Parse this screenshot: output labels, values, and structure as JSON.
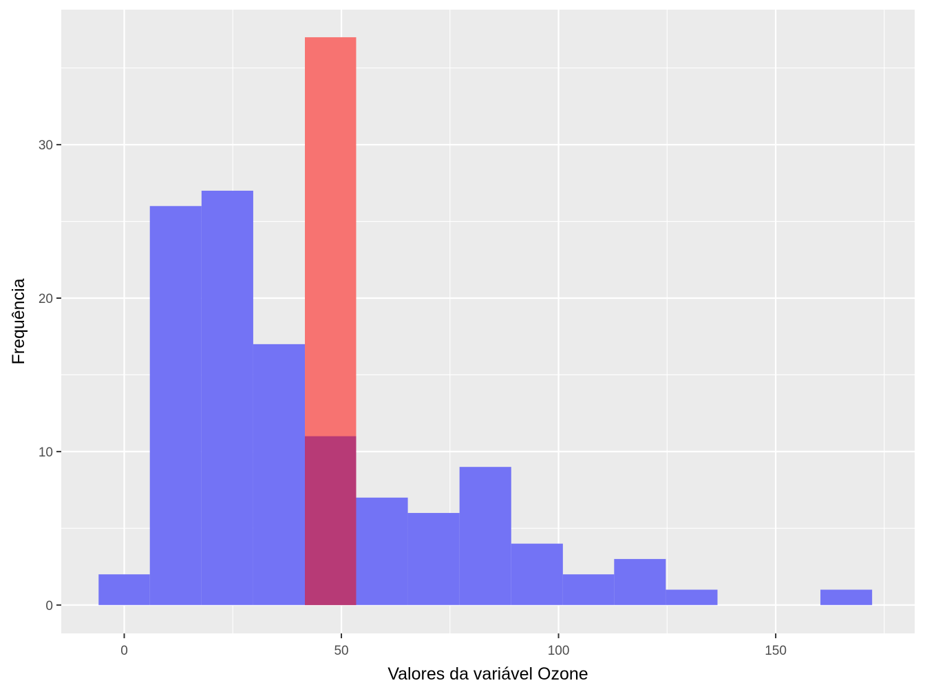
{
  "chart_data": {
    "type": "bar",
    "subtype": "histogram",
    "title": "",
    "xlabel": "Valores da variável Ozone",
    "ylabel": "Frequência",
    "xlim": [
      -14.5,
      182
    ],
    "ylim": [
      -1.85,
      38.8
    ],
    "x_ticks": [
      0,
      50,
      100,
      150
    ],
    "y_ticks": [
      0,
      10,
      20,
      30
    ],
    "grid": true,
    "legend": "none",
    "series": [
      {
        "color": "#7373f5",
        "bins": [
          {
            "x0": -5.9,
            "x1": 5.9,
            "count": 2
          },
          {
            "x0": 5.9,
            "x1": 17.8,
            "count": 26
          },
          {
            "x0": 17.8,
            "x1": 29.7,
            "count": 27
          },
          {
            "x0": 29.7,
            "x1": 41.6,
            "count": 17
          },
          {
            "x0": 41.6,
            "x1": 53.4,
            "count": 11
          },
          {
            "x0": 53.4,
            "x1": 65.3,
            "count": 7
          },
          {
            "x0": 65.3,
            "x1": 77.2,
            "count": 6
          },
          {
            "x0": 77.2,
            "x1": 89.1,
            "count": 9
          },
          {
            "x0": 89.1,
            "x1": 101.0,
            "count": 4
          },
          {
            "x0": 101.0,
            "x1": 112.8,
            "count": 2
          },
          {
            "x0": 112.8,
            "x1": 124.7,
            "count": 3
          },
          {
            "x0": 124.7,
            "x1": 136.6,
            "count": 1
          },
          {
            "x0": 136.6,
            "x1": 148.5,
            "count": 0
          },
          {
            "x0": 148.5,
            "x1": 160.3,
            "count": 0
          },
          {
            "x0": 160.3,
            "x1": 172.2,
            "count": 1
          }
        ]
      },
      {
        "color": "#f77371",
        "bins": [
          {
            "x0": 41.6,
            "x1": 53.4,
            "count": 37
          }
        ]
      }
    ],
    "overlap_color": "#b73a76"
  }
}
